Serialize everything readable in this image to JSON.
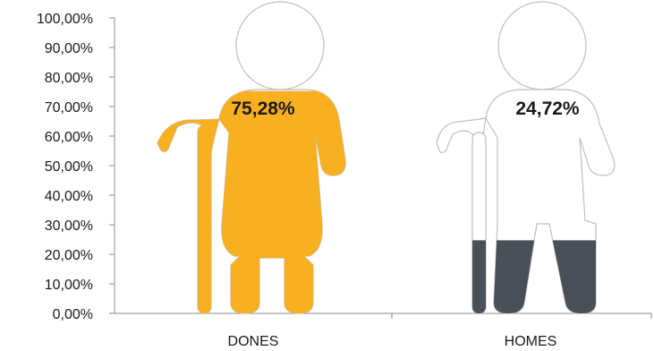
{
  "chart_data": {
    "type": "bar",
    "style": "pictograph",
    "categories": [
      "DONES",
      "HOMES"
    ],
    "values": [
      75.28,
      24.72
    ],
    "data_labels": [
      "75,28%",
      "24,72%"
    ],
    "yticks": [
      "0,00%",
      "10,00%",
      "20,00%",
      "30,00%",
      "40,00%",
      "50,00%",
      "60,00%",
      "70,00%",
      "80,00%",
      "90,00%",
      "100,00%"
    ],
    "ylim": [
      0,
      100
    ],
    "grid": false,
    "icons": [
      "elderly-woman-icon",
      "elderly-man-icon"
    ],
    "colors": {
      "fill": [
        "#F8B020",
        "#4A5057"
      ],
      "outline": "#BFBFBF"
    }
  }
}
